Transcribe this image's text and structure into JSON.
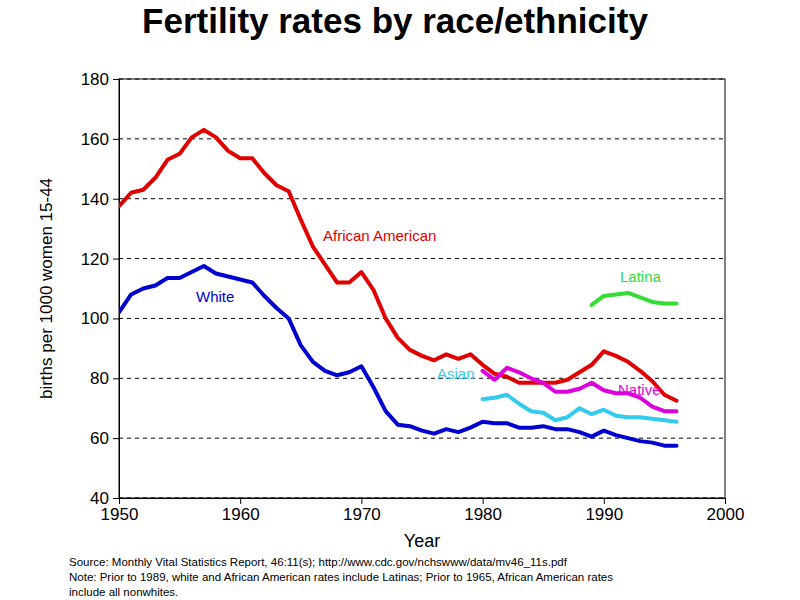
{
  "chart_data": {
    "type": "line",
    "title": "Fertility rates by race/ethnicity",
    "x_label": "Year",
    "y_label": "births per 1000 women 15-44",
    "notes": [
      "Source: Monthly Vital Statistics Report, 46:11(s); http://www.cdc.gov/nchswww/data/mv46_11s.pdf",
      "Note:  Prior  to 1989, white and African American rates include Latinas; Prior to 1965, African American rates",
      "include all nonwhites."
    ],
    "x": [
      1950,
      1951,
      1952,
      1953,
      1954,
      1955,
      1956,
      1957,
      1958,
      1959,
      1960,
      1961,
      1962,
      1963,
      1964,
      1965,
      1966,
      1967,
      1968,
      1969,
      1970,
      1971,
      1972,
      1973,
      1974,
      1975,
      1976,
      1977,
      1978,
      1979,
      1980,
      1981,
      1982,
      1983,
      1984,
      1985,
      1986,
      1987,
      1988,
      1989,
      1990,
      1991,
      1992,
      1993,
      1994,
      1995,
      1996
    ],
    "series": [
      {
        "name": "African American",
        "color": "#e00000",
        "values": [
          137.5,
          142,
          143,
          147,
          153,
          155,
          160.5,
          163,
          160.5,
          156,
          153.5,
          153.5,
          148.5,
          144.5,
          142.5,
          133,
          124,
          118,
          112,
          112,
          115.5,
          109.5,
          100,
          93.5,
          89.5,
          87.5,
          86,
          88,
          86.5,
          88,
          84.5,
          81.5,
          80.5,
          78.5,
          78.5,
          78.5,
          78.5,
          79.5,
          82,
          84.5,
          89,
          87.5,
          85.5,
          82.5,
          79,
          74.5,
          72.5
        ]
      },
      {
        "name": "White",
        "color": "#0000d0",
        "values": [
          102,
          108,
          110,
          111,
          113.5,
          113.5,
          115.5,
          117.5,
          115,
          114,
          113,
          112,
          107.5,
          103.5,
          100,
          91,
          85.5,
          82.5,
          81,
          82,
          84,
          77,
          69,
          64.5,
          64,
          62.5,
          61.5,
          63,
          62,
          63.5,
          65.5,
          65,
          65,
          63.5,
          63.5,
          64,
          63,
          63,
          62,
          60.5,
          62.5,
          61,
          60,
          59,
          58.5,
          57.5,
          57.5
        ]
      },
      {
        "name": "Latina",
        "color": "#33dd33",
        "values": [
          null,
          null,
          null,
          null,
          null,
          null,
          null,
          null,
          null,
          null,
          null,
          null,
          null,
          null,
          null,
          null,
          null,
          null,
          null,
          null,
          null,
          null,
          null,
          null,
          null,
          null,
          null,
          null,
          null,
          null,
          null,
          null,
          null,
          null,
          null,
          null,
          null,
          null,
          null,
          104.5,
          107.5,
          108,
          108.5,
          107,
          105.5,
          105,
          105
        ]
      },
      {
        "name": "Asian",
        "color": "#33ccee",
        "values": [
          null,
          null,
          null,
          null,
          null,
          null,
          null,
          null,
          null,
          null,
          null,
          null,
          null,
          null,
          null,
          null,
          null,
          null,
          null,
          null,
          null,
          null,
          null,
          null,
          null,
          null,
          null,
          null,
          null,
          null,
          73,
          73.5,
          74.5,
          71.5,
          69,
          68.5,
          66,
          67,
          70,
          68,
          69.5,
          67.5,
          67,
          67,
          66.5,
          66,
          65.5
        ]
      },
      {
        "name": "Native",
        "color": "#dd00dd",
        "values": [
          null,
          null,
          null,
          null,
          null,
          null,
          null,
          null,
          null,
          null,
          null,
          null,
          null,
          null,
          null,
          null,
          null,
          null,
          null,
          null,
          null,
          null,
          null,
          null,
          null,
          null,
          null,
          null,
          null,
          null,
          82.5,
          79.5,
          83.5,
          82,
          80,
          78.5,
          75.5,
          75.5,
          76.5,
          78.5,
          76,
          75,
          75,
          73.5,
          70.5,
          69,
          69
        ]
      }
    ],
    "xlim": [
      1950,
      2000
    ],
    "xticks": [
      1950,
      1960,
      1970,
      1980,
      1990,
      2000
    ],
    "ylim": [
      40,
      180
    ],
    "yticks": [
      40,
      60,
      80,
      100,
      120,
      140,
      160,
      180
    ],
    "grid": true
  }
}
